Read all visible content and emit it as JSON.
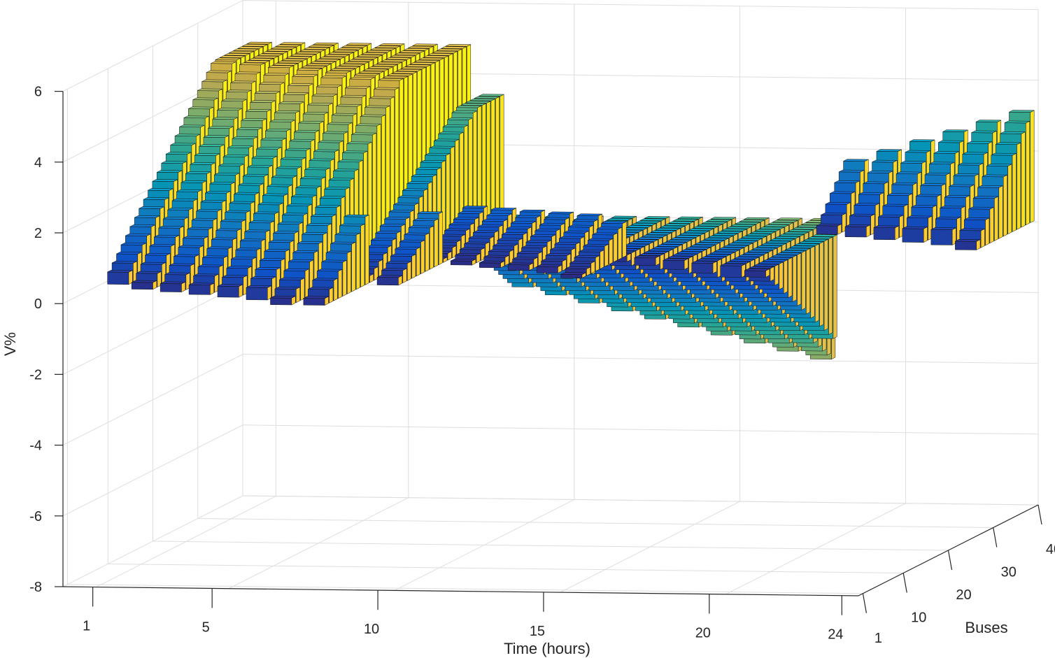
{
  "chart_data": {
    "type": "bar3d",
    "title": "",
    "xlabel": "Time (hours)",
    "ylabel": "Buses",
    "zlabel": "V%",
    "xlim": [
      1,
      24
    ],
    "ylim": [
      1,
      40
    ],
    "zlim": [
      -8,
      6
    ],
    "x_ticks": [
      1,
      5,
      10,
      15,
      20,
      24
    ],
    "y_ticks": [
      1,
      10,
      20,
      30,
      40
    ],
    "z_ticks": [
      -8,
      -6,
      -4,
      -2,
      0,
      2,
      4,
      6
    ],
    "grid": true,
    "colormap": "parula",
    "colormap_stops": [
      "#352a87",
      "#0f5cdd",
      "#1481d6",
      "#06a4ca",
      "#2eb7a4",
      "#87bf77",
      "#d1bb59",
      "#fec832",
      "#f9fb0e"
    ],
    "hours": [
      1,
      2,
      3,
      4,
      5,
      6,
      7,
      8,
      9,
      10,
      11,
      12,
      13,
      14,
      15,
      16,
      17,
      18,
      19,
      20,
      21,
      22,
      23,
      24
    ],
    "rising_buses": [
      4,
      10,
      17,
      24,
      31
    ],
    "series": [
      {
        "hours": [
          1,
          8
        ],
        "peak_v": 4.8
      },
      {
        "hours": [
          8,
          9
        ],
        "peak_v": 3.4
      },
      {
        "hours": [
          9,
          14
        ],
        "peak_v": 2.4
      },
      {
        "hours": [
          9,
          19
        ],
        "peak_v": -4.5
      },
      {
        "hours": [
          19,
          24
        ],
        "peak_v": 6.0
      }
    ]
  }
}
